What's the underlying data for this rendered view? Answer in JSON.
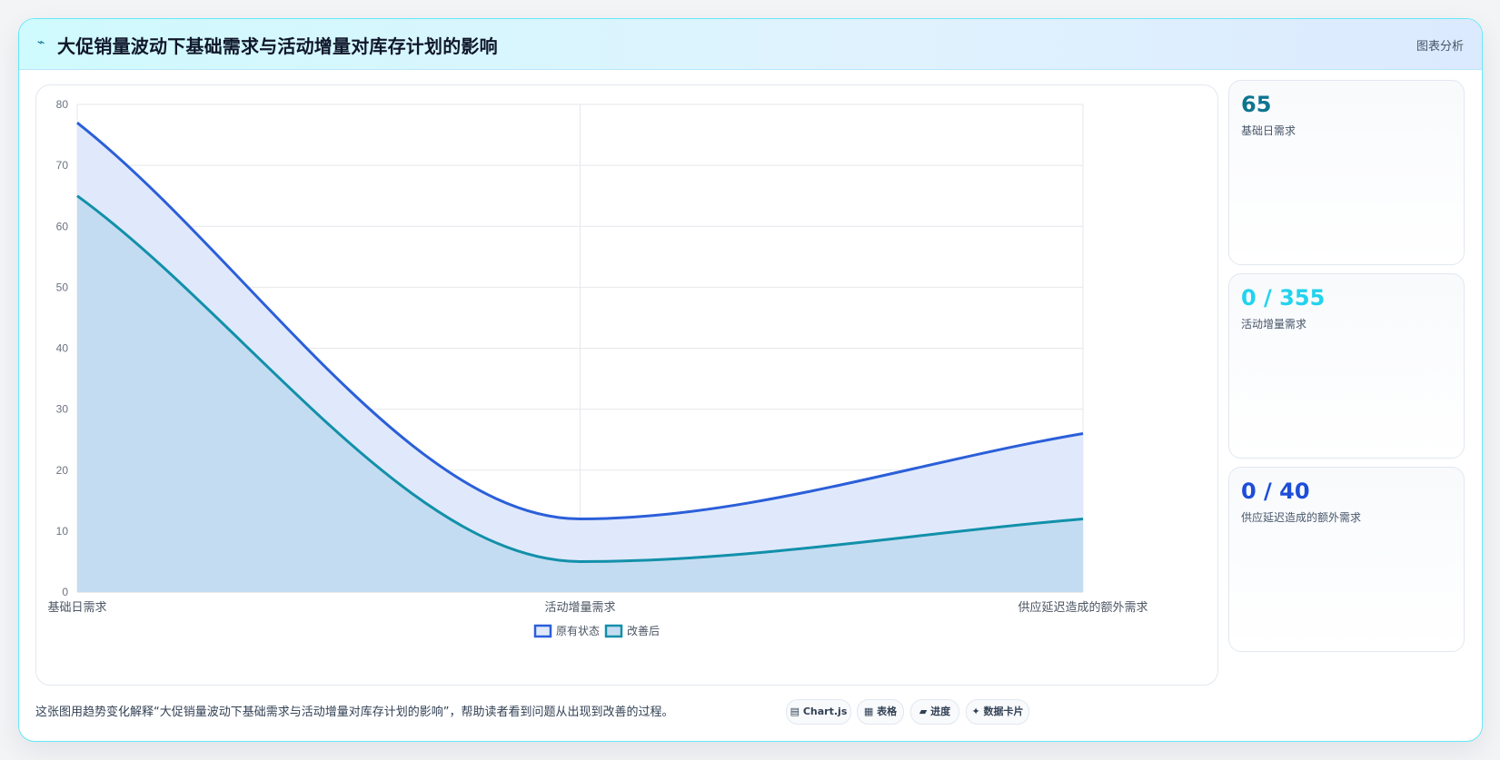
{
  "header": {
    "icon": "⌁",
    "title": "大促销量波动下基础需求与活动增量对库存计划的影响",
    "badge": "图表分析"
  },
  "kpis": [
    {
      "value": "65",
      "label": "基础日需求",
      "color": "#0e7490"
    },
    {
      "value": "0 / 355",
      "label": "活动增量需求",
      "color": "#22d3ee"
    },
    {
      "value": "0 / 40",
      "label": "供应延迟造成的额外需求",
      "color": "#1d4ed8"
    }
  ],
  "caption": "这张图用趋势变化解释“大促销量波动下基础需求与活动增量对库存计划的影响”，帮助读者看到问题从出现到改善的过程。",
  "tags": [
    {
      "icon": "▤",
      "label": "Chart.js"
    },
    {
      "icon": "▦",
      "label": "表格"
    },
    {
      "icon": "▰",
      "label": "进度"
    },
    {
      "icon": "✦",
      "label": "数据卡片"
    }
  ],
  "chart_data": {
    "type": "area",
    "categories": [
      "基础日需求",
      "活动增量需求",
      "供应延迟造成的额外需求"
    ],
    "series": [
      {
        "name": "原有状态",
        "values": [
          77,
          12,
          26
        ],
        "color": "#2b5fd9",
        "fill": "#e0e9fb"
      },
      {
        "name": "改善后",
        "values": [
          65,
          5,
          12
        ],
        "color": "#1290aa",
        "fill": "#c4dcf1"
      }
    ],
    "ylim": [
      0,
      80
    ],
    "yticks": [
      "0",
      "10",
      "20",
      "30",
      "40",
      "50",
      "60",
      "70",
      "80"
    ],
    "grid": true,
    "legend_position": "bottom-center",
    "title": "",
    "xlabel": "",
    "ylabel": ""
  }
}
